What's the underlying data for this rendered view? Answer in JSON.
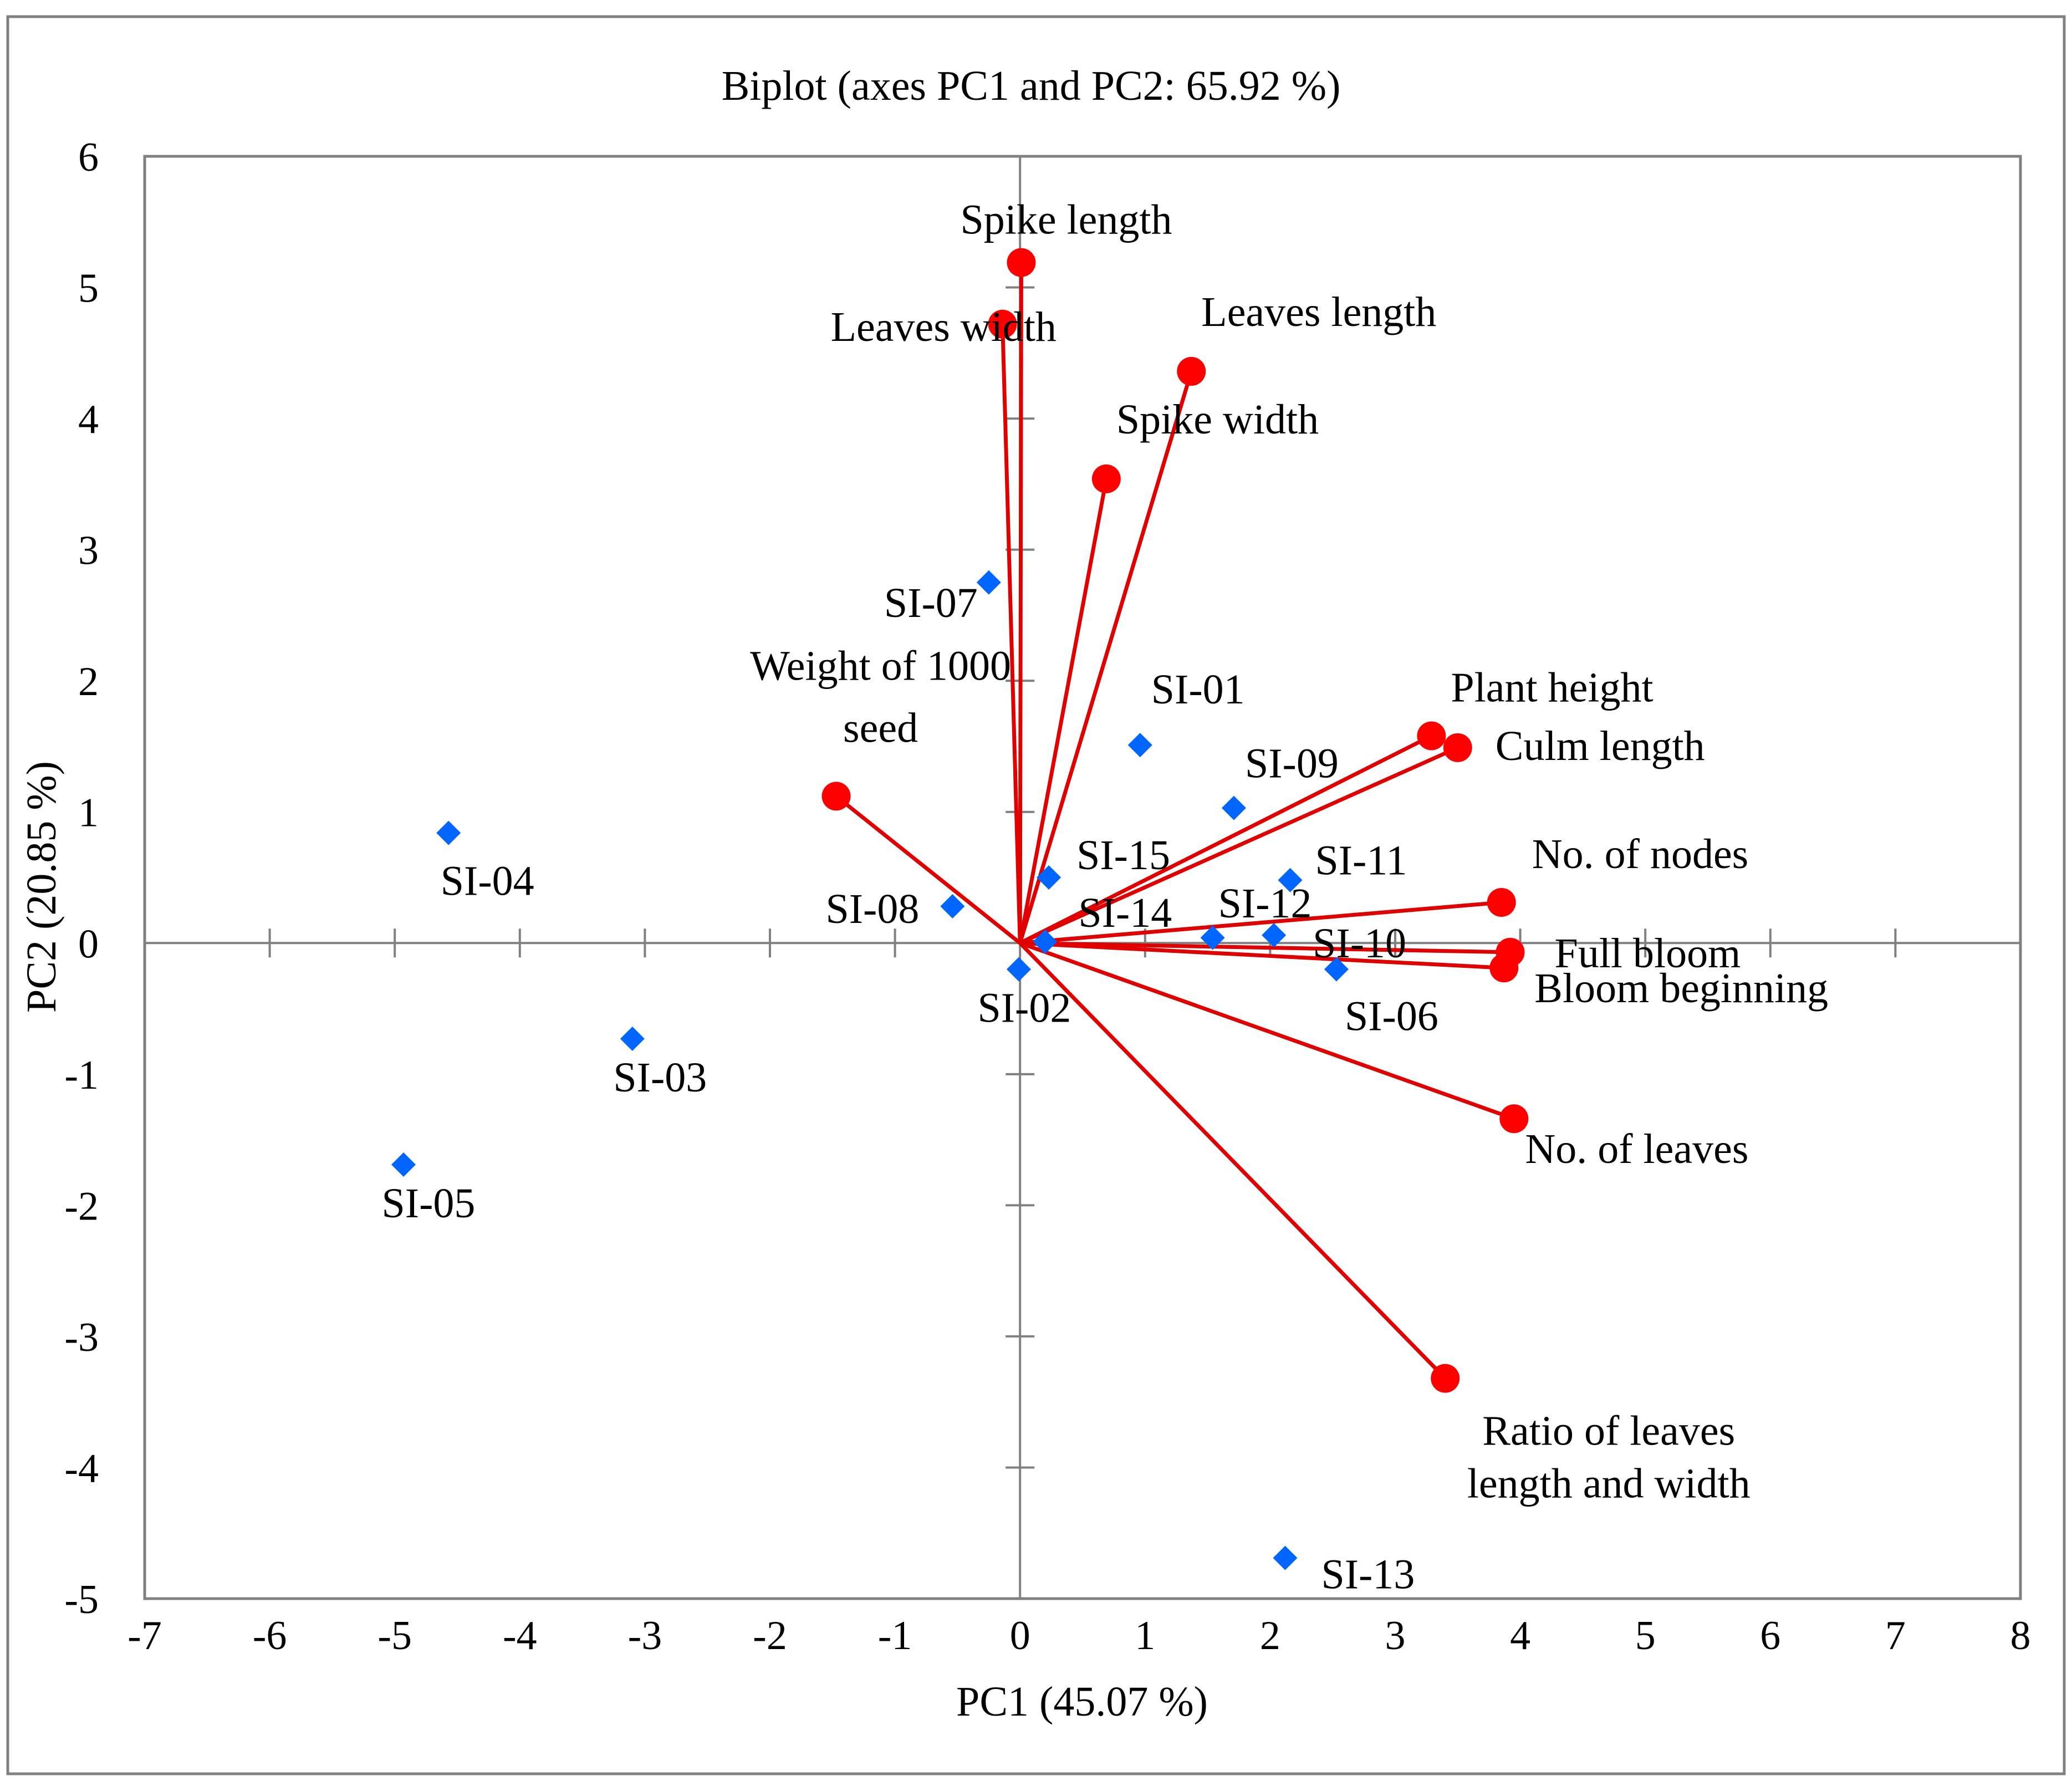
{
  "chart_data": {
    "type": "scatter",
    "title": "Biplot (axes PC1 and PC2: 65.92 %)",
    "xlabel": "PC1 (45.07 %)",
    "ylabel": "PC2 (20.85 %)",
    "xlim": [
      -7,
      8
    ],
    "ylim": [
      -5,
      6
    ],
    "xticks": [
      "-7",
      "-6",
      "-5",
      "-4",
      "-3",
      "-2",
      "-1",
      "0",
      "1",
      "2",
      "3",
      "4",
      "5",
      "6",
      "7",
      "8"
    ],
    "yticks": [
      "-5",
      "-4",
      "-3",
      "-2",
      "-1",
      "0",
      "1",
      "2",
      "3",
      "4",
      "5",
      "6"
    ],
    "grid": false,
    "colors": {
      "observations": "#0066ff",
      "variables": "#ff0000",
      "vectors": "#e00000"
    },
    "observations": [
      {
        "label": "SI-01",
        "x": 0.96,
        "y": 1.51
      },
      {
        "label": "SI-02",
        "x": -0.01,
        "y": -0.2
      },
      {
        "label": "SI-03",
        "x": -3.1,
        "y": -0.73
      },
      {
        "label": "SI-04",
        "x": -4.57,
        "y": 0.84
      },
      {
        "label": "SI-05",
        "x": -4.93,
        "y": -1.69
      },
      {
        "label": "SI-06",
        "x": 2.53,
        "y": -0.2
      },
      {
        "label": "SI-07",
        "x": -0.25,
        "y": 2.75
      },
      {
        "label": "SI-08",
        "x": -0.54,
        "y": 0.28
      },
      {
        "label": "SI-09",
        "x": 1.71,
        "y": 1.03
      },
      {
        "label": "SI-10",
        "x": 2.03,
        "y": 0.06
      },
      {
        "label": "SI-11",
        "x": 2.16,
        "y": 0.48
      },
      {
        "label": "SI-12",
        "x": 1.54,
        "y": 0.04
      },
      {
        "label": "SI-13",
        "x": 2.12,
        "y": -4.69
      },
      {
        "label": "SI-14",
        "x": 0.2,
        "y": 0.01
      },
      {
        "label": "SI-15",
        "x": 0.23,
        "y": 0.5
      }
    ],
    "variables": [
      {
        "label": [
          "Spike length"
        ],
        "x": 0.01,
        "y": 5.19
      },
      {
        "label": [
          "Leaves width"
        ],
        "x": -0.14,
        "y": 4.72
      },
      {
        "label": [
          "Leaves length"
        ],
        "x": 1.37,
        "y": 4.36
      },
      {
        "label": [
          "Spike width"
        ],
        "x": 0.69,
        "y": 3.54
      },
      {
        "label": [
          "Weight of 1000",
          "seed"
        ],
        "x": -1.47,
        "y": 1.12
      },
      {
        "label": [
          "Plant height"
        ],
        "x": 3.29,
        "y": 1.58
      },
      {
        "label": [
          "Culm length"
        ],
        "x": 3.5,
        "y": 1.49
      },
      {
        "label": [
          "No. of nodes"
        ],
        "x": 3.85,
        "y": 0.31
      },
      {
        "label": [
          "Full bloom"
        ],
        "x": 3.92,
        "y": -0.07
      },
      {
        "label": [
          "Bloom beginning"
        ],
        "x": 3.87,
        "y": -0.19
      },
      {
        "label": [
          "No. of leaves"
        ],
        "x": 3.95,
        "y": -1.34
      },
      {
        "label": [
          "Ratio of leaves",
          "length and width"
        ],
        "x": 3.4,
        "y": -3.32
      }
    ]
  }
}
